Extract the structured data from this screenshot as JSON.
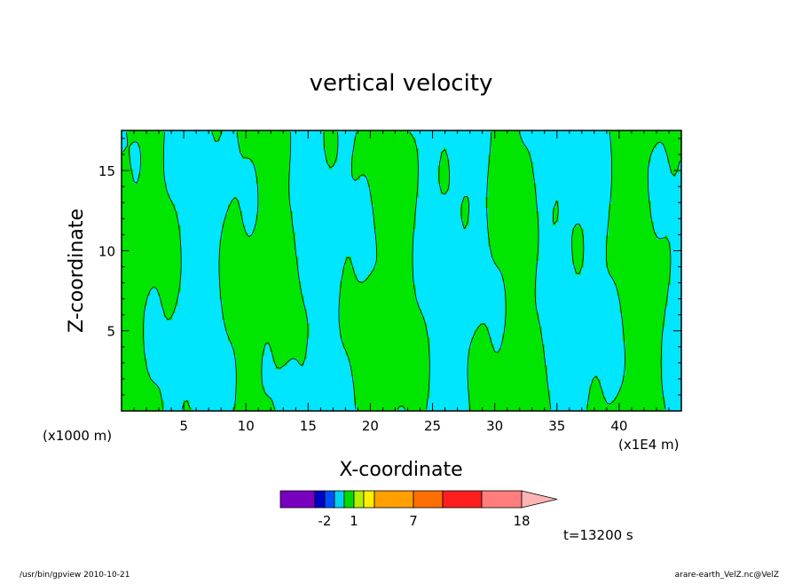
{
  "chart_data": {
    "type": "heatmap",
    "title": "vertical velocity",
    "xlabel": "X-coordinate",
    "ylabel": "Z-coordinate",
    "x_unit_left": "(x1000 m)",
    "x_unit_right": "(x1E4 m)",
    "xlim": [
      0,
      45
    ],
    "ylim": [
      0,
      17.5
    ],
    "x_ticks": [
      5,
      10,
      15,
      20,
      25,
      30,
      35,
      40
    ],
    "y_ticks": [
      5,
      10,
      15
    ],
    "grid": false,
    "colorbar": {
      "colors": [
        "#7a00c0",
        "#0000c8",
        "#0050ff",
        "#00d2f0",
        "#00dc00",
        "#b4f000",
        "#fff000",
        "#ffa000",
        "#ff6e00",
        "#ff1e1e",
        "#ff7d7d",
        "#ffb4b4"
      ],
      "labels": [
        "-2",
        "1",
        "7",
        "18"
      ]
    },
    "fields": {
      "positive_color": "#00e600",
      "negative_color": "#00e6ff",
      "contour_color": "#000000"
    }
  },
  "time_label": "t=13200 s",
  "footer_left": "/usr/bin/gpview   2010-10-21",
  "footer_right": "arare-earth_VelZ.nc@VelZ"
}
